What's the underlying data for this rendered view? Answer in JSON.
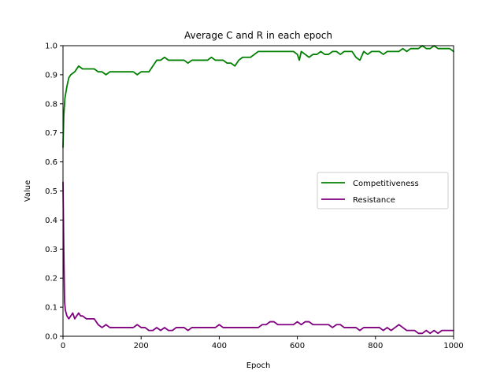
{
  "chart_data": {
    "type": "line",
    "title": "Average C and R in each epoch",
    "xlabel": "Epoch",
    "ylabel": "Value",
    "xlim": [
      0,
      1000
    ],
    "ylim": [
      0.0,
      1.0
    ],
    "xticks": [
      0,
      200,
      400,
      600,
      800,
      1000
    ],
    "xtick_labels": [
      "0",
      "200",
      "400",
      "600",
      "800",
      "1000"
    ],
    "yticks": [
      0.0,
      0.1,
      0.2,
      0.3,
      0.4,
      0.5,
      0.6,
      0.7,
      0.8,
      0.9,
      1.0
    ],
    "ytick_labels": [
      "0.0",
      "0.1",
      "0.2",
      "0.3",
      "0.4",
      "0.5",
      "0.6",
      "0.7",
      "0.8",
      "0.9",
      "1.0"
    ],
    "grid": false,
    "legend_position": "center-right",
    "series": [
      {
        "name": "Competitiveness",
        "color": "#008000",
        "x": [
          0,
          2,
          5,
          10,
          15,
          20,
          30,
          40,
          50,
          60,
          70,
          80,
          90,
          100,
          110,
          120,
          130,
          140,
          150,
          160,
          170,
          180,
          190,
          200,
          210,
          220,
          230,
          240,
          250,
          260,
          270,
          280,
          290,
          300,
          310,
          320,
          330,
          340,
          350,
          360,
          370,
          380,
          390,
          400,
          410,
          420,
          430,
          440,
          450,
          460,
          470,
          480,
          490,
          500,
          510,
          520,
          530,
          540,
          550,
          560,
          570,
          580,
          590,
          600,
          605,
          610,
          620,
          630,
          640,
          650,
          660,
          670,
          680,
          690,
          700,
          710,
          720,
          730,
          740,
          750,
          760,
          770,
          780,
          790,
          800,
          810,
          820,
          830,
          840,
          850,
          860,
          870,
          880,
          890,
          900,
          910,
          920,
          930,
          940,
          950,
          960,
          970,
          980,
          990,
          1000
        ],
        "values": [
          0.65,
          0.76,
          0.82,
          0.86,
          0.89,
          0.9,
          0.91,
          0.93,
          0.92,
          0.92,
          0.92,
          0.92,
          0.91,
          0.91,
          0.9,
          0.91,
          0.91,
          0.91,
          0.91,
          0.91,
          0.91,
          0.91,
          0.9,
          0.91,
          0.91,
          0.91,
          0.93,
          0.95,
          0.95,
          0.96,
          0.95,
          0.95,
          0.95,
          0.95,
          0.95,
          0.94,
          0.95,
          0.95,
          0.95,
          0.95,
          0.95,
          0.96,
          0.95,
          0.95,
          0.95,
          0.94,
          0.94,
          0.93,
          0.95,
          0.96,
          0.96,
          0.96,
          0.97,
          0.98,
          0.98,
          0.98,
          0.98,
          0.98,
          0.98,
          0.98,
          0.98,
          0.98,
          0.98,
          0.97,
          0.95,
          0.98,
          0.97,
          0.96,
          0.97,
          0.97,
          0.98,
          0.97,
          0.97,
          0.98,
          0.98,
          0.97,
          0.98,
          0.98,
          0.98,
          0.96,
          0.95,
          0.98,
          0.97,
          0.98,
          0.98,
          0.98,
          0.97,
          0.98,
          0.98,
          0.98,
          0.98,
          0.99,
          0.98,
          0.99,
          0.99,
          0.99,
          1.0,
          0.99,
          0.99,
          1.0,
          0.99,
          0.99,
          0.99,
          0.99,
          0.98
        ]
      },
      {
        "name": "Resistance",
        "color": "#800080",
        "x": [
          0,
          2,
          4,
          6,
          8,
          10,
          15,
          20,
          25,
          30,
          35,
          40,
          45,
          50,
          60,
          70,
          80,
          90,
          100,
          110,
          120,
          130,
          140,
          150,
          160,
          170,
          180,
          190,
          200,
          210,
          220,
          230,
          240,
          250,
          260,
          270,
          280,
          290,
          300,
          310,
          320,
          330,
          340,
          350,
          360,
          370,
          380,
          390,
          400,
          410,
          420,
          430,
          440,
          450,
          460,
          470,
          480,
          490,
          500,
          510,
          520,
          530,
          540,
          550,
          560,
          570,
          580,
          590,
          600,
          610,
          620,
          630,
          640,
          650,
          660,
          670,
          680,
          690,
          700,
          710,
          720,
          730,
          740,
          750,
          760,
          770,
          780,
          790,
          800,
          810,
          820,
          830,
          840,
          850,
          860,
          870,
          880,
          890,
          900,
          910,
          920,
          930,
          940,
          950,
          960,
          970,
          980,
          990,
          1000
        ],
        "values": [
          0.53,
          0.3,
          0.12,
          0.09,
          0.08,
          0.07,
          0.06,
          0.07,
          0.08,
          0.06,
          0.07,
          0.08,
          0.07,
          0.07,
          0.06,
          0.06,
          0.06,
          0.04,
          0.03,
          0.04,
          0.03,
          0.03,
          0.03,
          0.03,
          0.03,
          0.03,
          0.03,
          0.04,
          0.03,
          0.03,
          0.02,
          0.02,
          0.03,
          0.02,
          0.03,
          0.02,
          0.02,
          0.03,
          0.03,
          0.03,
          0.02,
          0.03,
          0.03,
          0.03,
          0.03,
          0.03,
          0.03,
          0.03,
          0.04,
          0.03,
          0.03,
          0.03,
          0.03,
          0.03,
          0.03,
          0.03,
          0.03,
          0.03,
          0.03,
          0.04,
          0.04,
          0.05,
          0.05,
          0.04,
          0.04,
          0.04,
          0.04,
          0.04,
          0.05,
          0.04,
          0.05,
          0.05,
          0.04,
          0.04,
          0.04,
          0.04,
          0.04,
          0.03,
          0.04,
          0.04,
          0.03,
          0.03,
          0.03,
          0.03,
          0.02,
          0.03,
          0.03,
          0.03,
          0.03,
          0.03,
          0.02,
          0.03,
          0.02,
          0.03,
          0.04,
          0.03,
          0.02,
          0.02,
          0.02,
          0.01,
          0.01,
          0.02,
          0.01,
          0.02,
          0.01,
          0.02,
          0.02,
          0.02,
          0.02
        ]
      }
    ]
  }
}
